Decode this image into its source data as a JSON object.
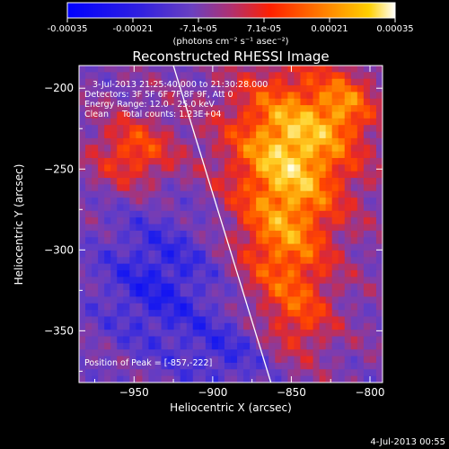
{
  "chart_data": {
    "type": "heatmap",
    "title": "Reconstructed RHESSI Image",
    "colorbar": {
      "ticks": [
        "-0.00035",
        "-0.00021",
        "-7.1e-05",
        "7.1e-05",
        "0.00021",
        "0.00035"
      ],
      "range": [
        -0.00035,
        0.00035
      ],
      "unit_label": "(photons cm⁻² s⁻¹ asec⁻²)",
      "colormap": [
        "#0000ff",
        "#5a3fd0",
        "#b03070",
        "#ff3000",
        "#ff9000",
        "#ffffff"
      ]
    },
    "xlabel": "Heliocentric X (arcsec)",
    "ylabel": "Heliocentric Y (arcsec)",
    "xlim": [
      -985,
      -792
    ],
    "ylim": [
      -382,
      -186
    ],
    "xticks": [
      -950,
      -900,
      -850,
      -800
    ],
    "yticks": [
      -350,
      -300,
      -250,
      -200
    ],
    "annotations": [
      "3-Jul-2013 21:25:40.000 to 21:30:28.000",
      "Detectors: 3F 5F 6F 7F 8F 9F, Att 0",
      "Energy Range: 12.0 - 25.0 keV",
      "Clean     Total counts: 1.23E+04"
    ],
    "peak_label": "Position of Peak = [-857,-222]",
    "peak": [
      -857,
      -222
    ],
    "limb_line": [
      [
        -925,
        -186
      ],
      [
        -863,
        -382
      ]
    ],
    "footer": "4-Jul-2013 00:55"
  }
}
